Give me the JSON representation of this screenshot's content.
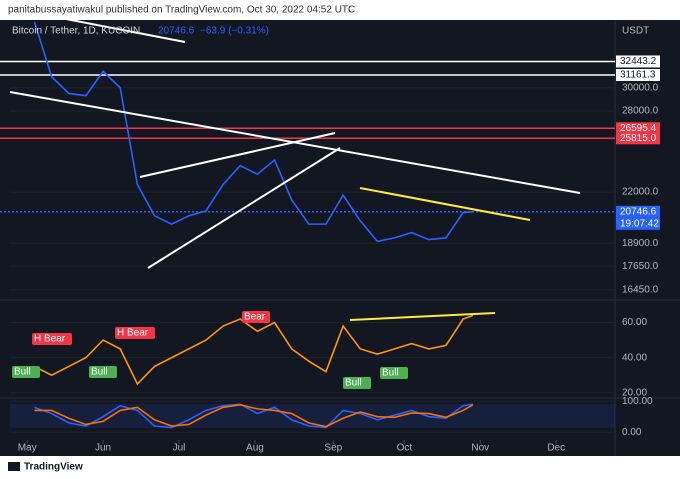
{
  "header": "panitabussayatiwakul published on TradingView.com, Oct 30, 2022 04:52 UTC",
  "brand": "TradingView",
  "chart_data": [
    {
      "type": "line",
      "title": "Bitcoin / Tether, 1D, KUCOIN",
      "annotations": [
        "20746.6",
        "−63.9 (−0.31%)"
      ],
      "unit": "USDT",
      "log_scale": true,
      "ylim": [
        15960,
        36700
      ],
      "yticks": [
        {
          "value": 30000,
          "label": "30000.0"
        },
        {
          "value": 28000,
          "label": "28000.0"
        },
        {
          "value": 22000,
          "label": "22000.0"
        },
        {
          "value": 18900,
          "label": "18900.0"
        },
        {
          "value": 17650,
          "label": "17650.0"
        },
        {
          "value": 16450,
          "label": "16450.0"
        }
      ],
      "xlim": [
        114,
        361
      ],
      "levels": {
        "values": [
          32443.2,
          31161.3,
          26595.4,
          25815.0,
          20746.6
        ],
        "value_labels": [
          "32443.2",
          "31161.3",
          "26595.4",
          "25815.0",
          "20746.6"
        ],
        "colors": [
          "#ffffff",
          "#ffffff",
          "#f23645",
          "#f23645",
          "#2962ff"
        ]
      },
      "countdown": "19:07:42",
      "series": [
        {
          "color": "#2962ff",
          "x": [
            124,
            131,
            138,
            145,
            152,
            159,
            166,
            173,
            180,
            187,
            194,
            201,
            208,
            215,
            222,
            229,
            236,
            243,
            250,
            257,
            264,
            271,
            278,
            285,
            292,
            299,
            303
          ],
          "values": [
            36500,
            31000,
            29500,
            29300,
            31500,
            30000,
            22500,
            20500,
            20000,
            20500,
            20800,
            22500,
            23800,
            23200,
            24200,
            21500,
            20000,
            20000,
            21800,
            20200,
            19000,
            19200,
            19500,
            19100,
            19200,
            20700,
            20746.6
          ]
        }
      ]
    },
    {
      "type": "line",
      "ylim": [
        17,
        70
      ],
      "yticks": [
        {
          "value": 60,
          "label": "60.00"
        },
        {
          "value": 40,
          "label": "40.00"
        },
        {
          "value": 20,
          "label": "20.00"
        }
      ],
      "xlim": [
        114,
        361
      ],
      "annotations": [
        {
          "text": "H Bear",
          "color": "#f23645"
        },
        {
          "text": "Bull",
          "color": "#4caf50"
        },
        {
          "text": "H Bear",
          "color": "#f23645"
        },
        {
          "text": "Bull",
          "color": "#4caf50"
        },
        {
          "text": "Bear",
          "color": "#f23645"
        },
        {
          "text": "Bull",
          "color": "#4caf50"
        },
        {
          "text": "Bull",
          "color": "#4caf50"
        }
      ],
      "series": [
        {
          "color": "#ff9800",
          "x": [
            124,
            131,
            138,
            145,
            152,
            159,
            166,
            173,
            180,
            187,
            194,
            201,
            208,
            215,
            222,
            229,
            236,
            243,
            250,
            257,
            264,
            271,
            278,
            285,
            292,
            299,
            303
          ],
          "values": [
            35,
            30,
            35,
            40,
            50,
            45,
            25,
            35,
            40,
            45,
            50,
            58,
            62,
            55,
            60,
            45,
            38,
            32,
            58,
            45,
            42,
            45,
            48,
            45,
            47,
            62,
            64
          ]
        }
      ]
    },
    {
      "type": "line",
      "ylim": [
        -25,
        110
      ],
      "yticks": [
        {
          "value": 100,
          "label": "100.00"
        },
        {
          "value": 0,
          "label": "0.00"
        }
      ],
      "xlim": [
        114,
        361
      ],
      "xticks": [
        {
          "value": 121,
          "label": "May"
        },
        {
          "value": 152,
          "label": "Jun"
        },
        {
          "value": 183,
          "label": "Jul"
        },
        {
          "value": 214,
          "label": "Aug"
        },
        {
          "value": 246,
          "label": "Sep"
        },
        {
          "value": 275,
          "label": "Oct"
        },
        {
          "value": 306,
          "label": "Nov"
        },
        {
          "value": 337,
          "label": "Dec"
        }
      ],
      "series": [
        {
          "color": "#2962ff",
          "x": [
            124,
            131,
            138,
            145,
            152,
            159,
            166,
            173,
            180,
            187,
            194,
            201,
            208,
            215,
            222,
            229,
            236,
            243,
            250,
            257,
            264,
            271,
            278,
            285,
            292,
            299,
            303
          ],
          "values": [
            80,
            60,
            30,
            20,
            50,
            85,
            70,
            20,
            15,
            40,
            70,
            85,
            90,
            60,
            80,
            40,
            20,
            15,
            70,
            60,
            40,
            55,
            70,
            50,
            45,
            85,
            90
          ]
        },
        {
          "color": "#ff6d00",
          "x": [
            124,
            131,
            138,
            145,
            152,
            159,
            166,
            173,
            180,
            187,
            194,
            201,
            208,
            215,
            222,
            229,
            236,
            243,
            250,
            257,
            264,
            271,
            278,
            285,
            292,
            299,
            303
          ],
          "values": [
            70,
            70,
            45,
            25,
            35,
            70,
            80,
            40,
            20,
            25,
            55,
            80,
            88,
            75,
            70,
            60,
            30,
            18,
            45,
            65,
            50,
            48,
            62,
            60,
            48,
            70,
            88
          ]
        }
      ]
    }
  ]
}
